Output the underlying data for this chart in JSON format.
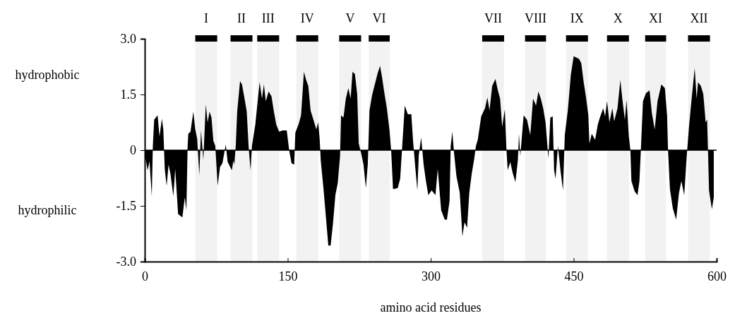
{
  "chart_data": {
    "type": "area",
    "xlabel": "amino acid residues",
    "x": [
      0,
      3,
      5,
      7.4,
      8.5,
      9.9,
      13.5,
      15.5,
      18,
      19.5,
      21,
      23,
      25,
      27,
      30,
      32,
      35,
      39.5,
      42,
      43.7,
      45,
      45.7,
      48,
      51,
      53,
      55,
      57.3,
      59,
      61.5,
      64,
      66,
      68,
      70,
      72,
      74,
      76.5,
      79,
      81.5,
      85,
      87,
      91.4,
      93,
      94,
      95.5,
      97,
      100,
      102,
      104.5,
      107,
      109,
      111,
      112.5,
      116,
      120.5,
      123,
      125,
      127,
      130,
      133,
      135.3,
      138,
      141,
      144.4,
      149,
      151.5,
      154,
      156.8,
      158,
      161.7,
      164,
      167,
      169,
      171.6,
      174,
      177.8,
      180,
      182,
      183.5,
      184.7,
      187.7,
      190,
      192.6,
      195,
      197.5,
      200,
      202.5,
      204.9,
      206,
      208.5,
      211,
      213.6,
      216,
      218,
      220.5,
      222.9,
      224.5,
      227.2,
      229.5,
      232,
      234,
      235.8,
      238.5,
      242,
      244.4,
      246.9,
      249,
      251,
      254,
      256.8,
      258.5,
      260.5,
      265.4,
      268,
      270.3,
      272.8,
      276,
      279.7,
      281.5,
      284,
      286,
      287.5,
      290,
      292.6,
      295,
      297.5,
      301,
      305,
      307.4,
      311,
      314.8,
      317,
      319.8,
      321,
      322.7,
      324.5,
      327,
      330.5,
      333.3,
      335.5,
      338.2,
      340.5,
      343,
      345.5,
      347.5,
      349.4,
      353,
      357,
      359.5,
      361.7,
      364.5,
      367.9,
      370.5,
      372.8,
      375,
      377.8,
      379.5,
      380.8,
      383.5,
      386,
      388.9,
      391.5,
      392.6,
      394,
      397.5,
      401,
      404.5,
      407.4,
      410.5,
      413,
      415.5,
      418,
      420.5,
      423.5,
      425.5,
      428,
      429.5,
      431,
      433.5,
      436,
      438.8,
      440.7,
      444,
      447,
      450,
      453,
      455.6,
      458,
      460.5,
      463,
      465.4,
      466.5,
      469,
      472.5,
      475.3,
      477.5,
      481,
      483,
      485,
      487.5,
      490.6,
      492.5,
      496,
      499,
      501,
      503.7,
      505.5,
      507.9,
      509.5,
      510.6,
      514,
      517,
      519,
      520.5,
      522.7,
      525.9,
      529.6,
      532,
      535,
      538,
      542,
      545.7,
      548,
      549,
      551,
      554,
      557.5,
      560.5,
      563,
      566,
      568.5,
      571,
      574,
      577,
      579,
      580.5,
      583.5,
      586,
      588.5,
      590,
      591,
      592,
      595,
      597
    ],
    "values": [
      -0.1,
      -0.54,
      -0.3,
      -1.24,
      0.12,
      0.82,
      0.94,
      0.37,
      0.85,
      0.56,
      -0.51,
      -0.96,
      -0.39,
      -0.64,
      -1.24,
      -0.51,
      -1.72,
      -1.81,
      -1.27,
      -1.62,
      0.12,
      0.44,
      0.5,
      1.04,
      0.56,
      0.31,
      -0.67,
      0.53,
      -0.26,
      1.23,
      0.75,
      1.04,
      0.88,
      0.25,
      0.12,
      -0.96,
      -0.45,
      -0.35,
      0.15,
      -0.32,
      -0.54,
      -0.28,
      -0.39,
      0.12,
      1.04,
      1.86,
      1.77,
      1.42,
      1.04,
      0.09,
      -0.54,
      0.12,
      0.69,
      1.83,
      1.39,
      1.77,
      1.32,
      1.58,
      1.45,
      1.07,
      0.69,
      0.5,
      0.53,
      0.53,
      0,
      -0.35,
      -0.39,
      0.47,
      0.72,
      0.94,
      2.11,
      1.92,
      1.73,
      1.07,
      0.75,
      0.56,
      0.75,
      0.31,
      -0.29,
      -1.08,
      -1.78,
      -2.57,
      -2.57,
      -1.97,
      -1.21,
      -0.89,
      -0.16,
      0.94,
      0.88,
      1.39,
      1.67,
      1.39,
      2.11,
      2.05,
      1.51,
      0.18,
      -0.1,
      -0.39,
      -1.02,
      -0.39,
      1.07,
      1.48,
      1.83,
      2.08,
      2.27,
      1.96,
      1.61,
      1.13,
      0.53,
      0,
      -1.05,
      -1.02,
      -0.77,
      0.18,
      1.2,
      0.97,
      0.97,
      0.25,
      -0.51,
      -1.08,
      -0.13,
      0.34,
      -0.39,
      -0.83,
      -1.21,
      -1.08,
      -1.21,
      -0.51,
      -1.62,
      -1.87,
      -1.87,
      -1.37,
      0.12,
      0.5,
      -0.07,
      -0.7,
      -1.15,
      -2.32,
      -1.94,
      -2.09,
      -1.15,
      -0.64,
      -0.26,
      0.12,
      0.28,
      0.91,
      1.13,
      1.42,
      1.07,
      1.73,
      1.92,
      1.61,
      1.39,
      0.63,
      1.1,
      0,
      -0.54,
      -0.32,
      -0.61,
      -0.86,
      -0.26,
      0.44,
      -0.16,
      0.94,
      0.82,
      0.41,
      1.39,
      1.2,
      1.58,
      1.39,
      1.13,
      0.75,
      -0.23,
      0.88,
      0.91,
      -0.54,
      -0.77,
      0.12,
      -0.51,
      -1.08,
      0.41,
      1.1,
      2.02,
      2.53,
      2.49,
      2.46,
      2.34,
      1.83,
      1.42,
      0.94,
      0.18,
      0.44,
      0.28,
      0.69,
      0.88,
      1.13,
      0.91,
      1.32,
      0.75,
      1.13,
      0.78,
      1.13,
      1.89,
      1.39,
      0.82,
      1.35,
      0.37,
      0,
      -0.83,
      -1.11,
      -1.21,
      -0.83,
      0,
      1.32,
      1.54,
      1.61,
      1.01,
      0.56,
      1.32,
      1.77,
      1.67,
      0.94,
      0,
      -1.05,
      -1.56,
      -1.87,
      -1.15,
      -0.83,
      -1.21,
      -0.2,
      0.63,
      1.45,
      2.21,
      1.39,
      1.83,
      1.73,
      1.51,
      0.75,
      0.82,
      -0.07,
      -1.08,
      -1.59,
      -1.27
    ],
    "color": "#000000",
    "xlim": [
      0,
      600
    ],
    "xticks": [
      0,
      150,
      300,
      450,
      600
    ],
    "ylim": [
      -3.0,
      3.0
    ],
    "yticks": [
      {
        "value": -3.0,
        "label": "-3.0"
      },
      {
        "value": -1.5,
        "label": "-1.5"
      },
      0,
      {
        "value": 1.5,
        "label": "1.5"
      },
      {
        "value": 3.0,
        "label": "3.0"
      }
    ],
    "ref_lines": [
      {
        "axis": "y",
        "value": 0,
        "color": "#000000"
      }
    ],
    "bands": [
      {
        "axis": "x",
        "from": 53,
        "to": 76,
        "label": "I",
        "color": "#000000"
      },
      {
        "axis": "x",
        "from": 90,
        "to": 113,
        "label": "II",
        "color": "#000000"
      },
      {
        "axis": "x",
        "from": 118,
        "to": 141,
        "label": "III",
        "color": "#000000"
      },
      {
        "axis": "x",
        "from": 159,
        "to": 182,
        "label": "IV",
        "color": "#000000"
      },
      {
        "axis": "x",
        "from": 204,
        "to": 227,
        "label": "V",
        "color": "#000000"
      },
      {
        "axis": "x",
        "from": 235,
        "to": 257,
        "label": "VI",
        "color": "#000000"
      },
      {
        "axis": "x",
        "from": 354,
        "to": 377,
        "label": "VII",
        "color": "#000000"
      },
      {
        "axis": "x",
        "from": 399,
        "to": 421,
        "label": "VIII",
        "color": "#000000"
      },
      {
        "axis": "x",
        "from": 442,
        "to": 465,
        "label": "IX",
        "color": "#000000"
      },
      {
        "axis": "x",
        "from": 485,
        "to": 508,
        "label": "X",
        "color": "#000000"
      },
      {
        "axis": "x",
        "from": 525,
        "to": 547,
        "label": "XI",
        "color": "#000000"
      },
      {
        "axis": "x",
        "from": 570,
        "to": 593,
        "label": "XII",
        "color": "#000000"
      }
    ],
    "annotations": [
      "hydrophobic",
      "hydrophilic"
    ]
  }
}
